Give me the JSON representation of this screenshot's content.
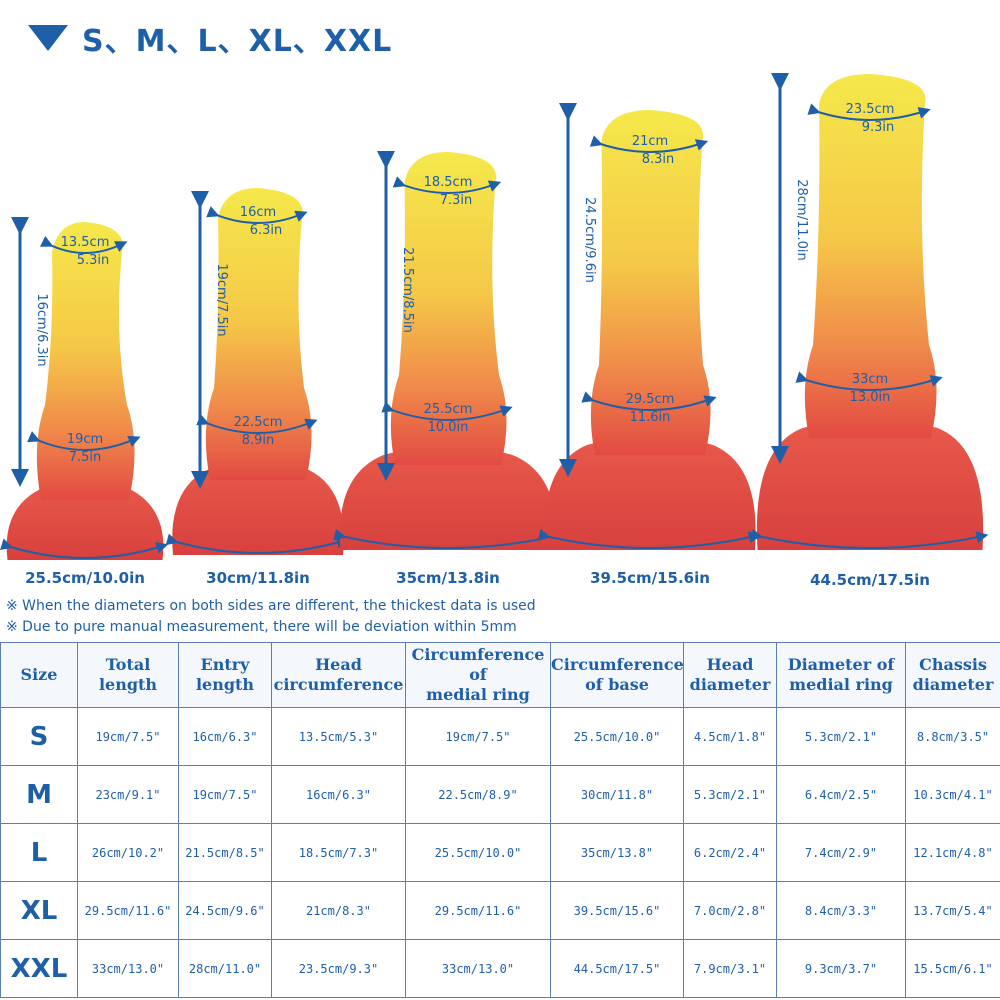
{
  "header": {
    "icon": "triangle-down-icon",
    "sizes_title": "S、M、L、XL、XXL"
  },
  "colors": {
    "accent": "#1f5fa8",
    "tip": "#f5e84a",
    "mid": "#f3a24a",
    "base": "#e24a43"
  },
  "products": [
    {
      "size": "S",
      "height_label": "16cm/6.3in",
      "head_cm": "13.5cm",
      "head_in": "5.3in",
      "ring_cm": "19cm",
      "ring_in": "7.5in",
      "base_label": "25.5cm/10.0in"
    },
    {
      "size": "M",
      "height_label": "19cm/7.5in",
      "head_cm": "16cm",
      "head_in": "6.3in",
      "ring_cm": "22.5cm",
      "ring_in": "8.9in",
      "base_label": "30cm/11.8in"
    },
    {
      "size": "L",
      "height_label": "21.5cm/8.5in",
      "head_cm": "18.5cm",
      "head_in": "7.3in",
      "ring_cm": "25.5cm",
      "ring_in": "10.0in",
      "base_label": "35cm/13.8in"
    },
    {
      "size": "XL",
      "height_label": "24.5cm/9.6in",
      "head_cm": "21cm",
      "head_in": "8.3in",
      "ring_cm": "29.5cm",
      "ring_in": "11.6in",
      "base_label": "39.5cm/15.6in"
    },
    {
      "size": "XXL",
      "height_label": "28cm/11.0in",
      "head_cm": "23.5cm",
      "head_in": "9.3in",
      "ring_cm": "33cm",
      "ring_in": "13.0in",
      "base_label": "44.5cm/17.5in"
    }
  ],
  "notes": [
    "※ When the diameters on both sides are different, the thickest data is used",
    "※ Due to pure manual measurement, there will be deviation within 5mm"
  ],
  "table": {
    "headers": [
      {
        "l1": "Size",
        "l2": ""
      },
      {
        "l1": "Total",
        "l2": "length"
      },
      {
        "l1": "Entry",
        "l2": "length"
      },
      {
        "l1": "Head",
        "l2": "circumference"
      },
      {
        "l1": "Circumference of",
        "l2": "medial ring"
      },
      {
        "l1": "Circumference",
        "l2": "of base"
      },
      {
        "l1": "Head",
        "l2": "diameter"
      },
      {
        "l1": "Diameter of",
        "l2": "medial ring"
      },
      {
        "l1": "Chassis",
        "l2": "diameter"
      }
    ],
    "rows": [
      [
        "S",
        "19cm/7.5\"",
        "16cm/6.3\"",
        "13.5cm/5.3\"",
        "19cm/7.5\"",
        "25.5cm/10.0\"",
        "4.5cm/1.8\"",
        "5.3cm/2.1\"",
        "8.8cm/3.5\""
      ],
      [
        "M",
        "23cm/9.1\"",
        "19cm/7.5\"",
        "16cm/6.3\"",
        "22.5cm/8.9\"",
        "30cm/11.8\"",
        "5.3cm/2.1\"",
        "6.4cm/2.5\"",
        "10.3cm/4.1\""
      ],
      [
        "L",
        "26cm/10.2\"",
        "21.5cm/8.5\"",
        "18.5cm/7.3\"",
        "25.5cm/10.0\"",
        "35cm/13.8\"",
        "6.2cm/2.4\"",
        "7.4cm/2.9\"",
        "12.1cm/4.8\""
      ],
      [
        "XL",
        "29.5cm/11.6\"",
        "24.5cm/9.6\"",
        "21cm/8.3\"",
        "29.5cm/11.6\"",
        "39.5cm/15.6\"",
        "7.0cm/2.8\"",
        "8.4cm/3.3\"",
        "13.7cm/5.4\""
      ],
      [
        "XXL",
        "33cm/13.0\"",
        "28cm/11.0\"",
        "23.5cm/9.3\"",
        "33cm/13.0\"",
        "44.5cm/17.5\"",
        "7.9cm/3.1\"",
        "9.3cm/3.7\"",
        "15.5cm/6.1\""
      ]
    ]
  }
}
